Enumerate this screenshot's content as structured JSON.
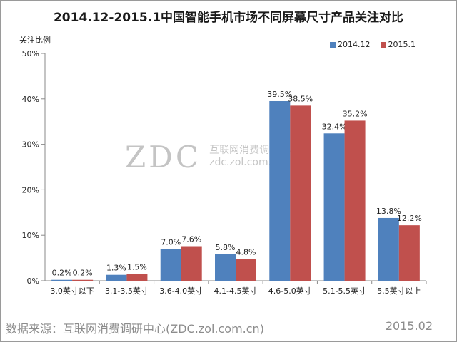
{
  "title": "2014.12-2015.1中国智能手机市场不同屏幕尺寸产品关注对比",
  "watermark": {
    "logo": "ZDC",
    "text": "互联网消费调研中心",
    "url": "zdc.zol.com.cn"
  },
  "source_note": "数据来源：互联网消费调研中心(ZDC.zol.com.cn)",
  "footer_date": "2015.02",
  "colors": {
    "series1": "#4f81bd",
    "series2": "#c0504d"
  },
  "chart_data": {
    "type": "bar",
    "title": "2014.12-2015.1中国智能手机市场不同屏幕尺寸产品关注对比",
    "ylabel": "关注比例",
    "xlabel": "",
    "ylim": [
      0,
      50
    ],
    "yticks": [
      "0%",
      "10%",
      "20%",
      "30%",
      "40%",
      "50%"
    ],
    "grid": false,
    "legend_position": "top-right",
    "categories": [
      "3.0英寸以下",
      "3.1-3.5英寸",
      "3.6-4.0英寸",
      "4.1-4.5英寸",
      "4.6-5.0英寸",
      "5.1-5.5英寸",
      "5.5英寸以上"
    ],
    "series": [
      {
        "name": "2014.12",
        "values": [
          0.2,
          1.3,
          7.0,
          5.8,
          39.5,
          32.4,
          13.8
        ],
        "labels": [
          "0.2%",
          "1.3%",
          "7.0%",
          "5.8%",
          "39.5%",
          "32.4%",
          "13.8%"
        ]
      },
      {
        "name": "2015.1",
        "values": [
          0.2,
          1.5,
          7.6,
          4.8,
          38.5,
          35.2,
          12.2
        ],
        "labels": [
          "0.2%",
          "1.5%",
          "7.6%",
          "4.8%",
          "38.5%",
          "35.2%",
          "12.2%"
        ]
      }
    ]
  }
}
